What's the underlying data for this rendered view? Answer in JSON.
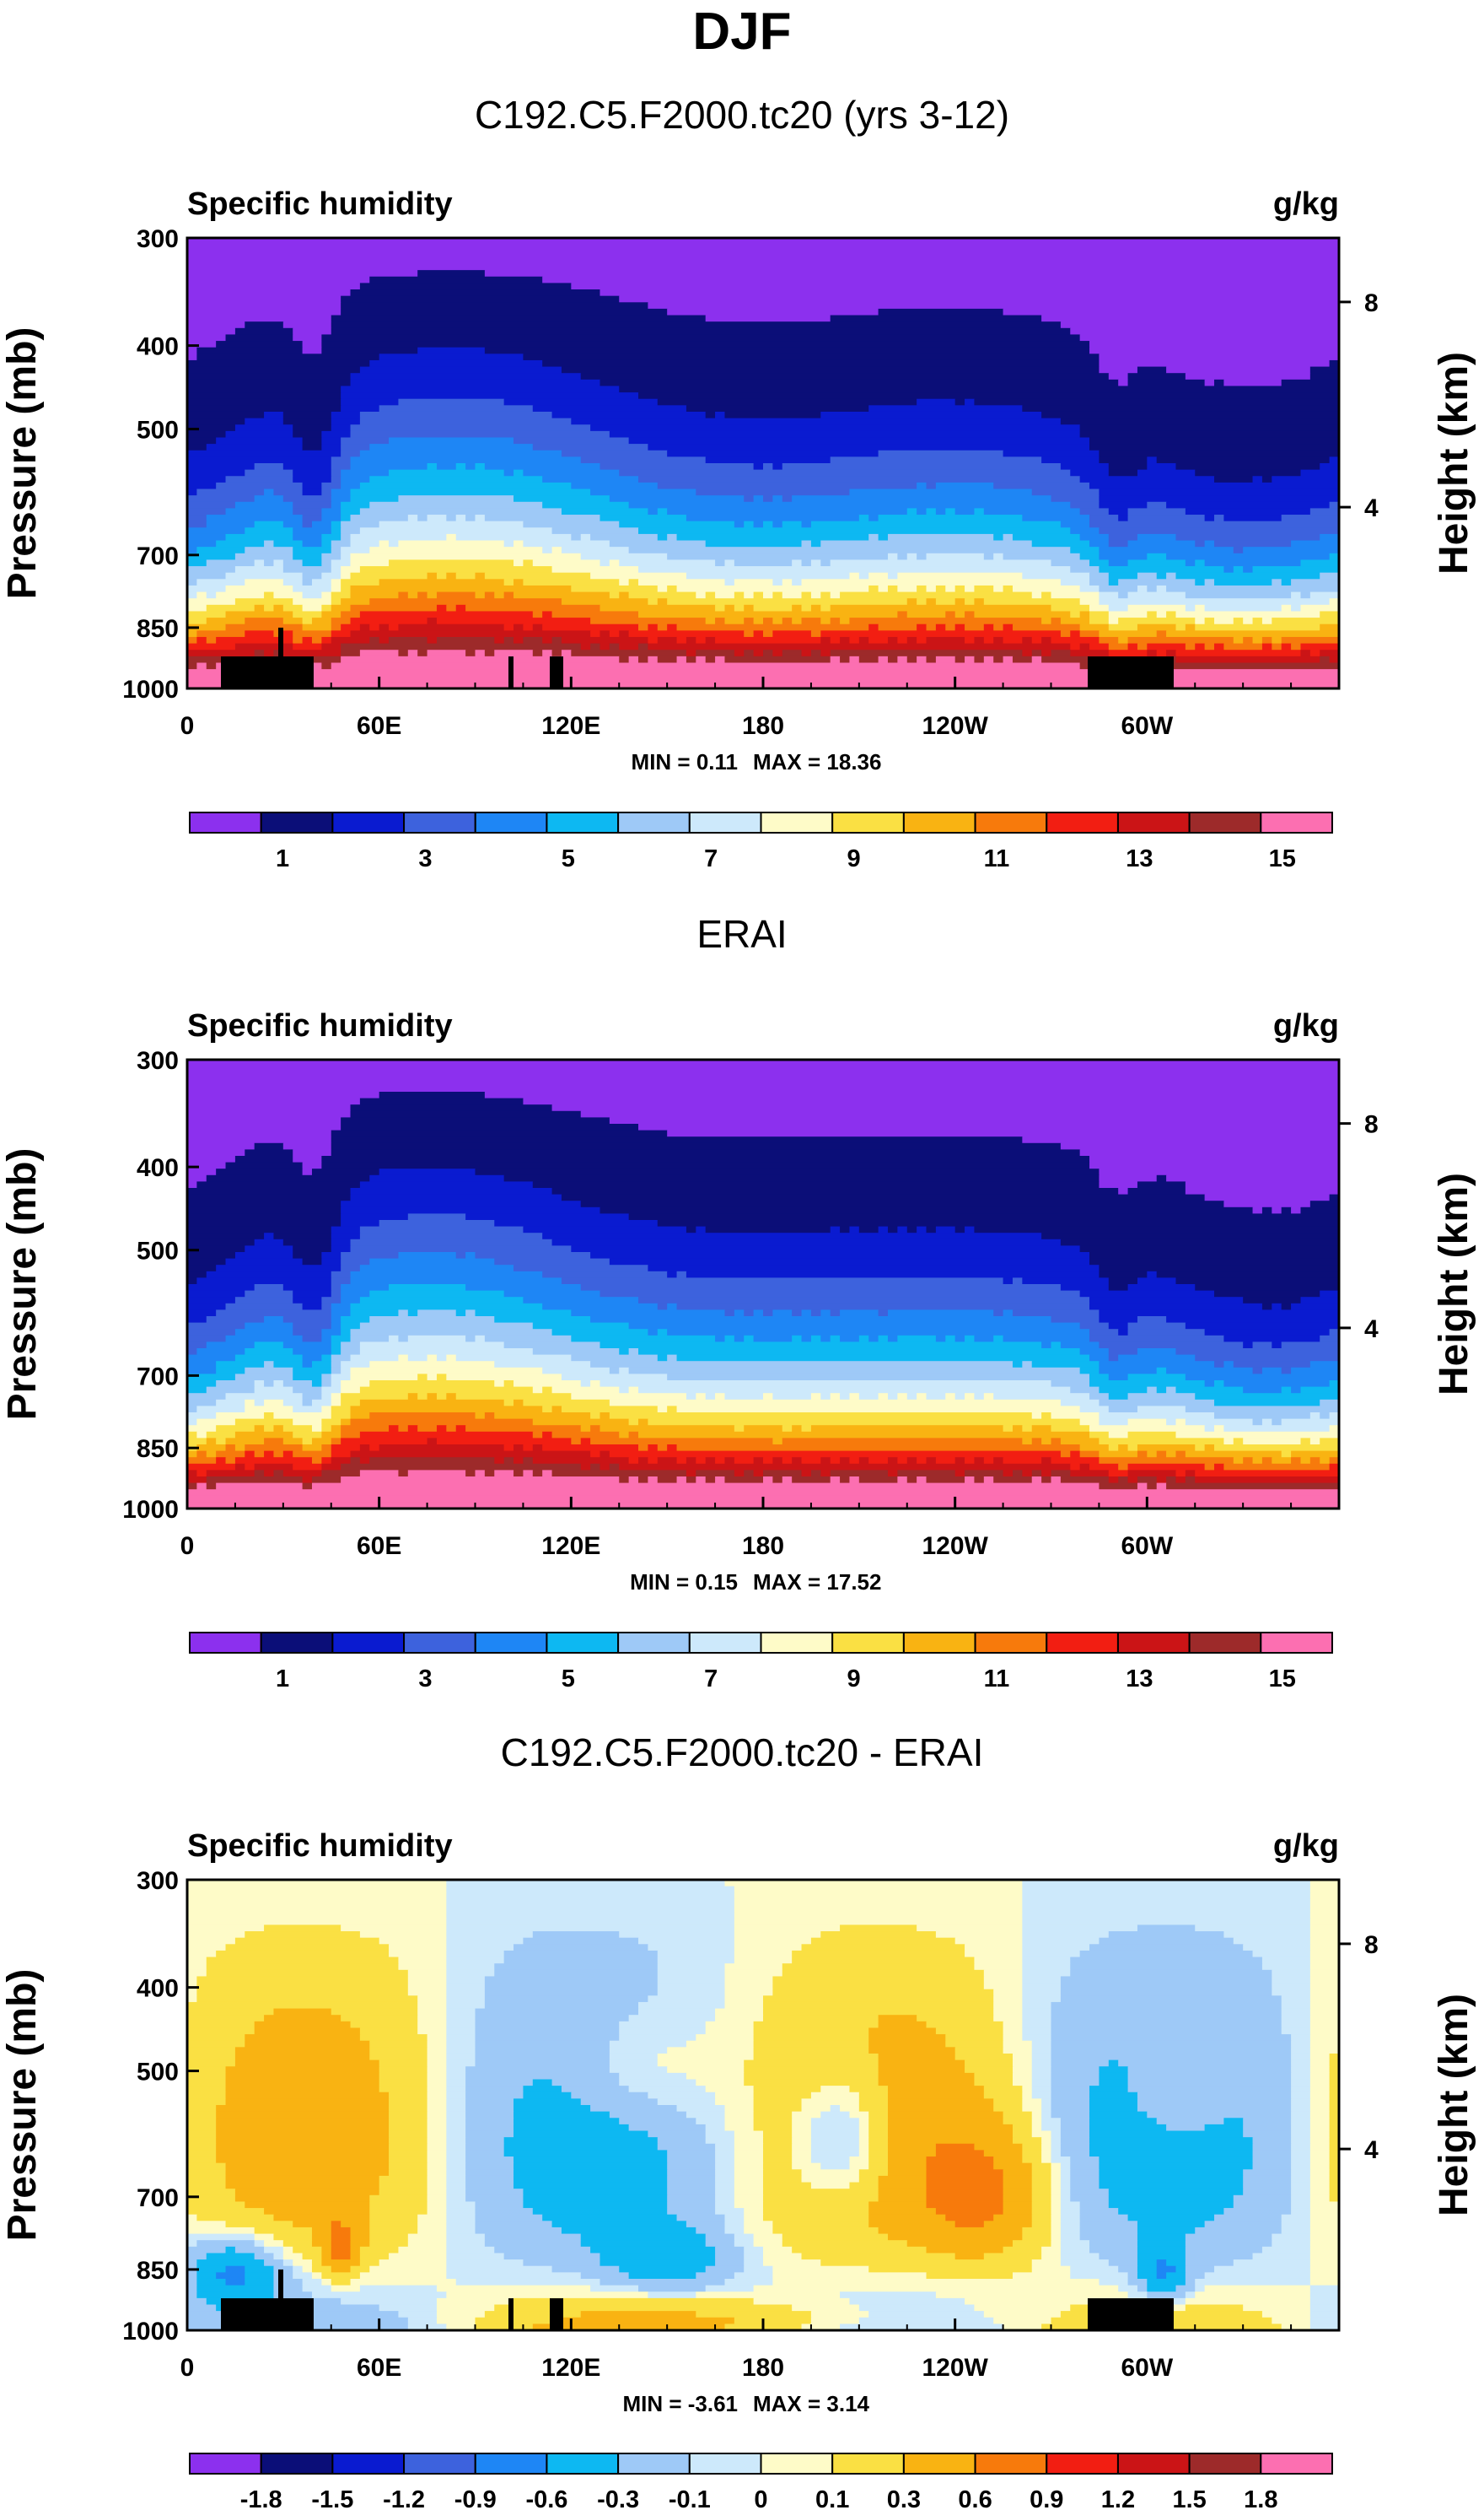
{
  "page": {
    "title": "DJF"
  },
  "colorbars": {
    "absolute": {
      "colors": [
        "#8c30ee",
        "#0b0e78",
        "#0a1bd0",
        "#3d62dd",
        "#1e86f5",
        "#0db8f2",
        "#9ec9f7",
        "#cde9fb",
        "#fefbc8",
        "#fae043",
        "#f9b312",
        "#f77a0c",
        "#f21e12",
        "#cb1416",
        "#9d2a2a",
        "#fc6fb1"
      ],
      "labels": [
        "1",
        "3",
        "5",
        "7",
        "9",
        "11",
        "13",
        "15"
      ]
    },
    "difference": {
      "colors": [
        "#8c30ee",
        "#0b0e78",
        "#0a1bd0",
        "#3d62dd",
        "#1e86f5",
        "#0db8f2",
        "#9ec9f7",
        "#cde9fb",
        "#fefbc8",
        "#fae043",
        "#f9b312",
        "#f77a0c",
        "#f21e12",
        "#cb1416",
        "#9d2a2a",
        "#fc6fb1"
      ],
      "labels": [
        "-1.8",
        "-1.5",
        "-1.2",
        "-0.9",
        "-0.6",
        "-0.3",
        "-0.1",
        "0",
        "0.1",
        "0.3",
        "0.6",
        "0.9",
        "1.2",
        "1.5",
        "1.8"
      ]
    }
  },
  "chart_data": [
    {
      "type": "heatmap",
      "kind": "absolute",
      "title": "C192.C5.F2000.tc20 (yrs 3-12)",
      "variable_label": "Specific humidity",
      "units_label": "g/kg",
      "xlabel": "",
      "ylabel": "Pressure (mb)",
      "y2label": "Height (km)",
      "x_ticks": [
        "0",
        "60E",
        "120E",
        "180",
        "120W",
        "60W"
      ],
      "x_tick_values": [
        0,
        60,
        120,
        180,
        240,
        300
      ],
      "xlim": [
        0,
        360
      ],
      "y_ticks": [
        "300",
        "400",
        "500",
        "700",
        "850",
        "1000"
      ],
      "y_tick_values": [
        300,
        400,
        500,
        700,
        850,
        1000
      ],
      "ylim": [
        300,
        1000
      ],
      "y2_ticks": [
        "8",
        "4"
      ],
      "y2_tick_values": [
        8,
        4
      ],
      "min_label": "MIN =   0.11",
      "max_label": "MAX =  18.36",
      "min": 0.11,
      "max": 18.36
    },
    {
      "type": "heatmap",
      "kind": "absolute",
      "title": "ERAI",
      "variable_label": "Specific humidity",
      "units_label": "g/kg",
      "xlabel": "",
      "ylabel": "Pressure (mb)",
      "y2label": "Height (km)",
      "x_ticks": [
        "0",
        "60E",
        "120E",
        "180",
        "120W",
        "60W"
      ],
      "x_tick_values": [
        0,
        60,
        120,
        180,
        240,
        300
      ],
      "xlim": [
        0,
        360
      ],
      "y_ticks": [
        "300",
        "400",
        "500",
        "700",
        "850",
        "1000"
      ],
      "y_tick_values": [
        300,
        400,
        500,
        700,
        850,
        1000
      ],
      "ylim": [
        300,
        1000
      ],
      "y2_ticks": [
        "8",
        "4"
      ],
      "y2_tick_values": [
        8,
        4
      ],
      "min_label": "MIN =   0.15",
      "max_label": "MAX =  17.52",
      "min": 0.15,
      "max": 17.52
    },
    {
      "type": "heatmap",
      "kind": "difference",
      "title": "C192.C5.F2000.tc20 - ERAI",
      "variable_label": "Specific humidity",
      "units_label": "g/kg",
      "xlabel": "",
      "ylabel": "Pressure (mb)",
      "y2label": "Height (km)",
      "x_ticks": [
        "0",
        "60E",
        "120E",
        "180",
        "120W",
        "60W"
      ],
      "x_tick_values": [
        0,
        60,
        120,
        180,
        240,
        300
      ],
      "xlim": [
        0,
        360
      ],
      "y_ticks": [
        "300",
        "400",
        "500",
        "700",
        "850",
        "1000"
      ],
      "y_tick_values": [
        300,
        400,
        500,
        700,
        850,
        1000
      ],
      "ylim": [
        300,
        1000
      ],
      "y2_ticks": [
        "8",
        "4"
      ],
      "y2_tick_values": [
        8,
        4
      ],
      "min_label": "MIN =  -3.61",
      "max_label": "MAX =   3.14",
      "min": -3.61,
      "max": 3.14
    }
  ]
}
